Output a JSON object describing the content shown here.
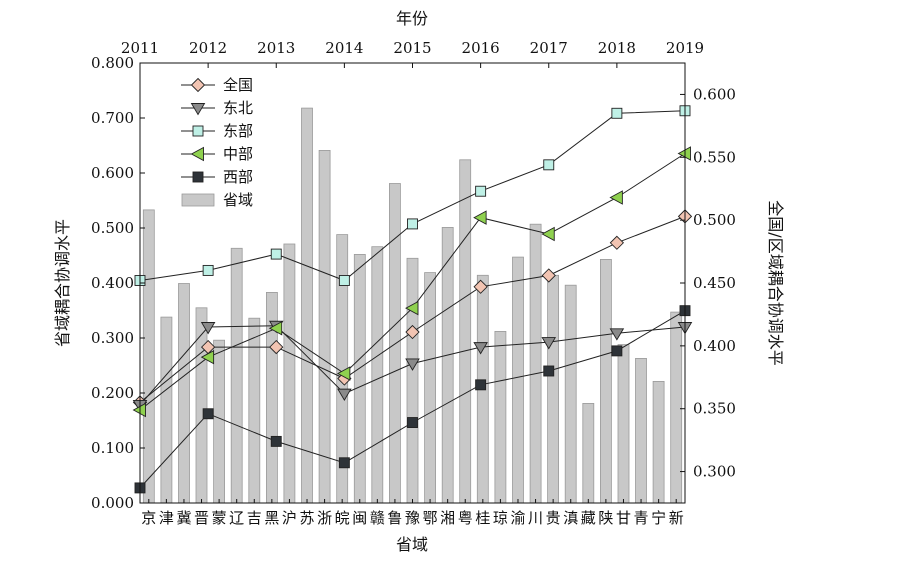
{
  "chart_data": {
    "type": "bar+line",
    "title": "",
    "top_axis": {
      "label": "年份",
      "ticks": [
        "2011",
        "2012",
        "2013",
        "2014",
        "2015",
        "2016",
        "2017",
        "2018",
        "2019"
      ]
    },
    "left_axis": {
      "label": "省域耦合协调水平",
      "range": [
        0,
        0.8
      ],
      "ticks": [
        "0.000",
        "0.100",
        "0.200",
        "0.300",
        "0.400",
        "0.500",
        "0.600",
        "0.700",
        "0.800"
      ]
    },
    "right_axis": {
      "label": "全国/区域耦合协调水平",
      "range": [
        0.275,
        0.625
      ],
      "ticks": [
        "0.300",
        "0.350",
        "0.400",
        "0.450",
        "0.500",
        "0.550",
        "0.600"
      ]
    },
    "bottom_axis": {
      "label": "省域",
      "categories": [
        "京",
        "津",
        "冀",
        "晋",
        "蒙",
        "辽",
        "吉",
        "黑",
        "沪",
        "苏",
        "浙",
        "皖",
        "闽",
        "赣",
        "鲁",
        "豫",
        "鄂",
        "湘",
        "粤",
        "桂",
        "琼",
        "渝",
        "川",
        "贵",
        "滇",
        "藏",
        "陕",
        "甘",
        "青",
        "宁",
        "新"
      ]
    },
    "bars": {
      "name": "省域",
      "values": [
        0.533,
        0.338,
        0.399,
        0.355,
        0.296,
        0.463,
        0.336,
        0.383,
        0.471,
        0.718,
        0.641,
        0.488,
        0.452,
        0.466,
        0.581,
        0.445,
        0.419,
        0.501,
        0.624,
        0.414,
        0.312,
        0.447,
        0.507,
        0.414,
        0.396,
        0.181,
        0.443,
        0.288,
        0.263,
        0.221,
        0.347
      ]
    },
    "series": [
      {
        "name": "全国",
        "color": "#f2c4b2",
        "marker": "diamond",
        "values": [
          0.355,
          0.399,
          0.399,
          0.374,
          0.411,
          0.447,
          0.456,
          0.482,
          0.503
        ]
      },
      {
        "name": "东北",
        "color": "#8a8a8a",
        "marker": "triangle-down",
        "values": [
          0.353,
          0.415,
          0.416,
          0.362,
          0.386,
          0.399,
          0.403,
          0.41,
          0.415
        ]
      },
      {
        "name": "东部",
        "color": "#bff0e6",
        "marker": "square",
        "values": [
          0.452,
          0.46,
          0.473,
          0.452,
          0.497,
          0.523,
          0.544,
          0.585,
          0.587
        ]
      },
      {
        "name": "中部",
        "color": "#8fd14f",
        "marker": "triangle-left",
        "values": [
          0.349,
          0.391,
          0.414,
          0.378,
          0.43,
          0.502,
          0.489,
          0.518,
          0.553
        ]
      },
      {
        "name": "西部",
        "color": "#2e3338",
        "marker": "square",
        "values": [
          0.287,
          0.346,
          0.324,
          0.307,
          0.339,
          0.369,
          0.38,
          0.396,
          0.428
        ]
      }
    ],
    "legend_position": "top-left",
    "grid": false
  }
}
